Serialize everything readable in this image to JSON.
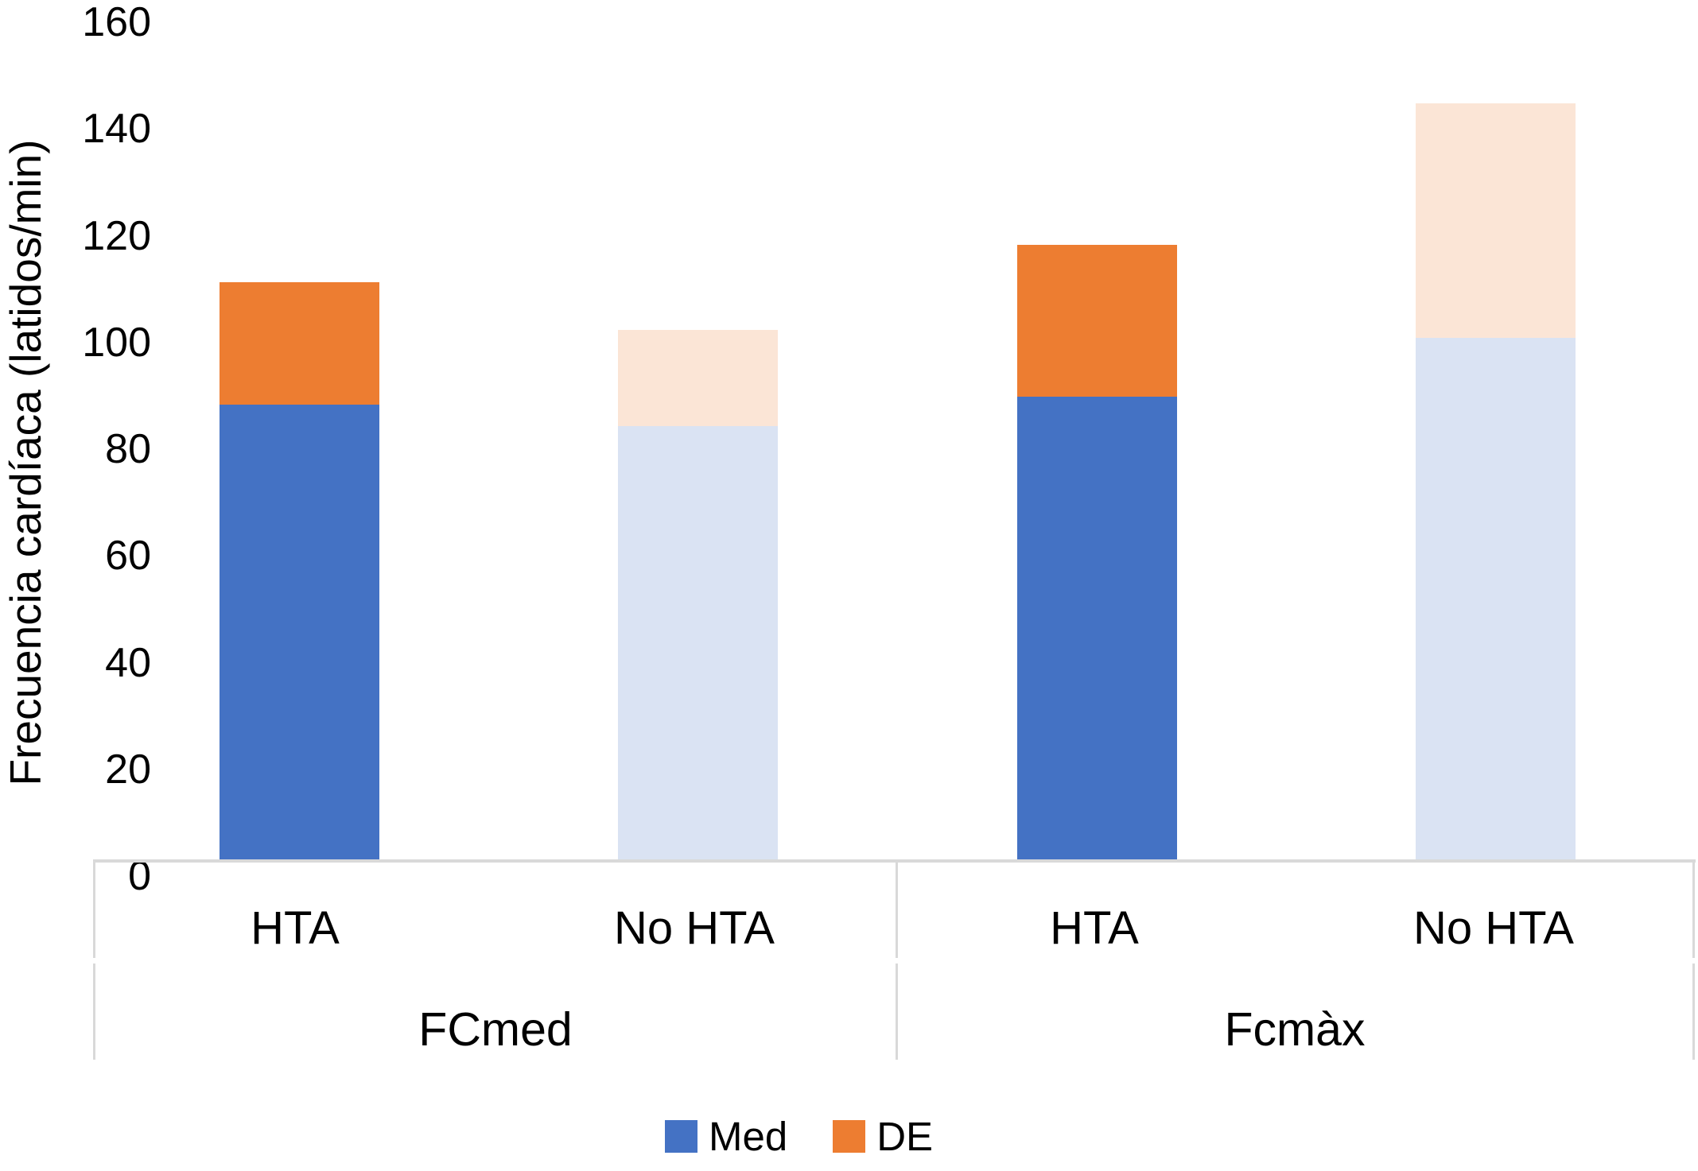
{
  "chart_data": {
    "type": "bar",
    "stacked": true,
    "title": "",
    "xlabel": "",
    "ylabel": "Frecuencia cardíaca (latidos/min)",
    "ylim": [
      0,
      160
    ],
    "yticks": [
      0,
      20,
      40,
      60,
      80,
      100,
      120,
      140,
      160
    ],
    "grid": false,
    "legend_position": "bottom",
    "groups": [
      {
        "label": "FCmed",
        "categories": [
          "HTA",
          "No HTA"
        ]
      },
      {
        "label": "Fcmàx",
        "categories": [
          "HTA",
          "No HTA"
        ]
      }
    ],
    "bars": [
      {
        "group": "FCmed",
        "category": "HTA",
        "Med": 85.5,
        "DE": 23,
        "total": 108.5
      },
      {
        "group": "FCmed",
        "category": "No HTA",
        "Med": 81.5,
        "DE": 18,
        "total": 99.5
      },
      {
        "group": "Fcmàx",
        "category": "HTA",
        "Med": 87,
        "DE": 28.5,
        "total": 115.5
      },
      {
        "group": "Fcmàx",
        "category": "No HTA",
        "Med": 98,
        "DE": 44,
        "total": 142
      }
    ],
    "series": [
      {
        "name": "Med",
        "values": [
          85.5,
          81.5,
          87,
          98
        ]
      },
      {
        "name": "DE",
        "values": [
          23,
          18,
          28.5,
          44
        ]
      }
    ],
    "bar_colors": {
      "Med": [
        "#4472C4",
        "#DAE3F3",
        "#4472C4",
        "#DAE3F3"
      ],
      "DE": [
        "#ED7D31",
        "#FBE5D6",
        "#ED7D31",
        "#FBE5D6"
      ]
    },
    "legend": [
      {
        "label": "Med",
        "color": "#4472C4"
      },
      {
        "label": "DE",
        "color": "#ED7D31"
      }
    ],
    "colors": {
      "med_hta": "#4472C4",
      "de_hta": "#ED7D31",
      "med_no_hta": "#DAE3F3",
      "de_no_hta": "#FBE5D6",
      "axis_line": "#D9D9D9",
      "text": "#000000",
      "background": "#FFFFFF"
    }
  }
}
